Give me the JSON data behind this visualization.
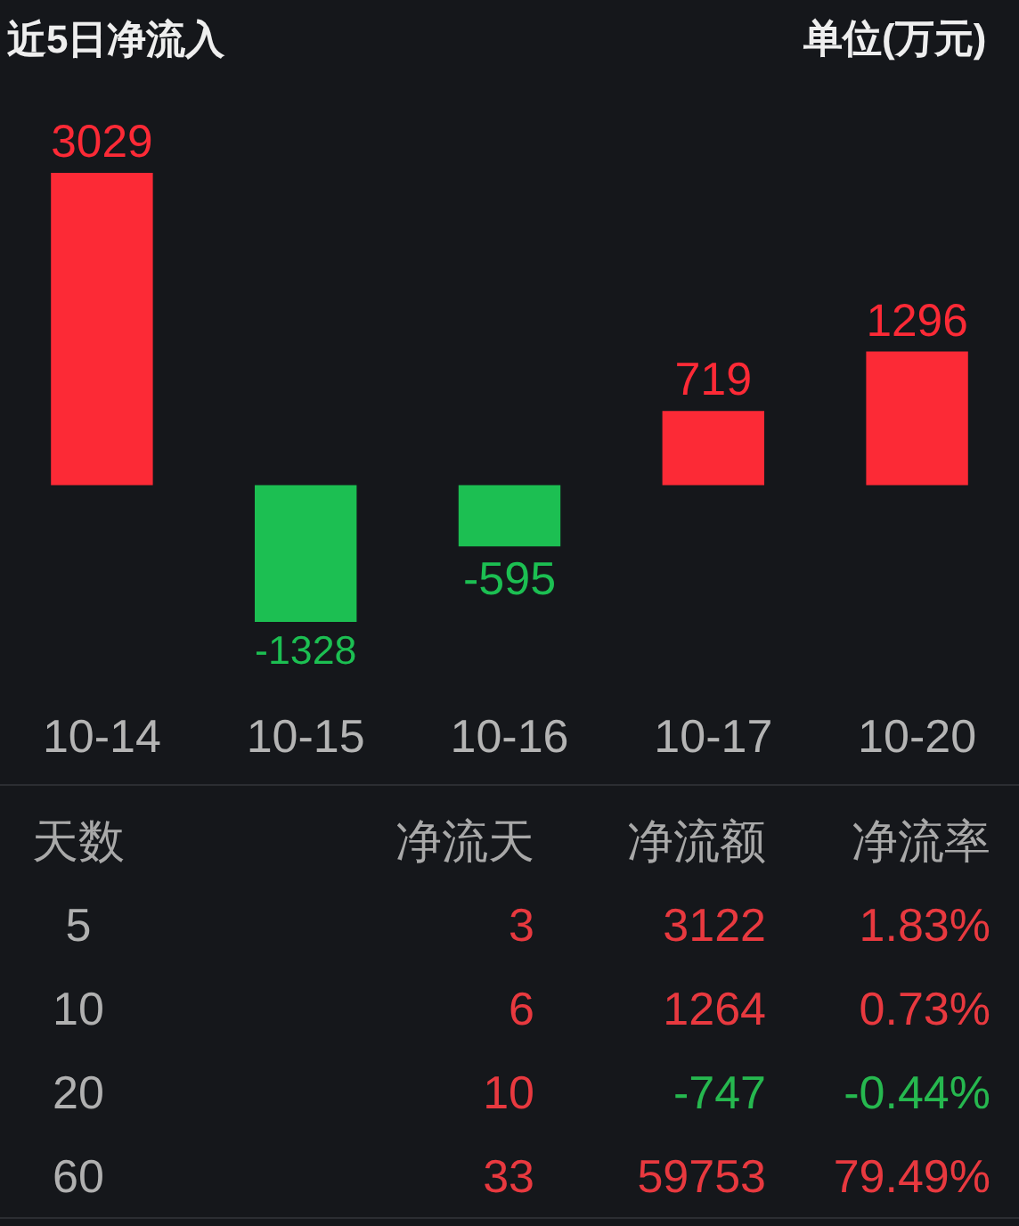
{
  "chart_data": [
    {
      "type": "bar",
      "title": "近5日净流入",
      "subtitle": "单位(万元)",
      "categories": [
        "10-14",
        "10-15",
        "10-16",
        "10-17",
        "10-20"
      ],
      "values": [
        3029,
        -1328,
        -595,
        719,
        1296
      ],
      "colors": [
        "#fc2a36",
        "#1cbf52",
        "#1cbf52",
        "#fc2a36",
        "#fc2a36"
      ],
      "data_labels": true
    },
    {
      "type": "other",
      "ylabel": "天数",
      "categories": [
        "净流天",
        "净流额",
        "净流率"
      ],
      "y_categories": [
        "5",
        "10",
        "20",
        "60"
      ],
      "cell_labels": [
        [
          "3",
          "3122",
          "1.83%"
        ],
        [
          "6",
          "1264",
          "0.73%"
        ],
        [
          "10",
          "-747",
          "-0.44%"
        ],
        [
          "33",
          "59753",
          "79.49%"
        ]
      ],
      "colors": [
        [
          "#e8393f",
          "#e8393f",
          "#e8393f"
        ],
        [
          "#e8393f",
          "#e8393f",
          "#e8393f"
        ],
        [
          "#e8393f",
          "#26b84f",
          "#26b84f"
        ],
        [
          "#e8393f",
          "#e8393f",
          "#e8393f"
        ]
      ]
    }
  ]
}
